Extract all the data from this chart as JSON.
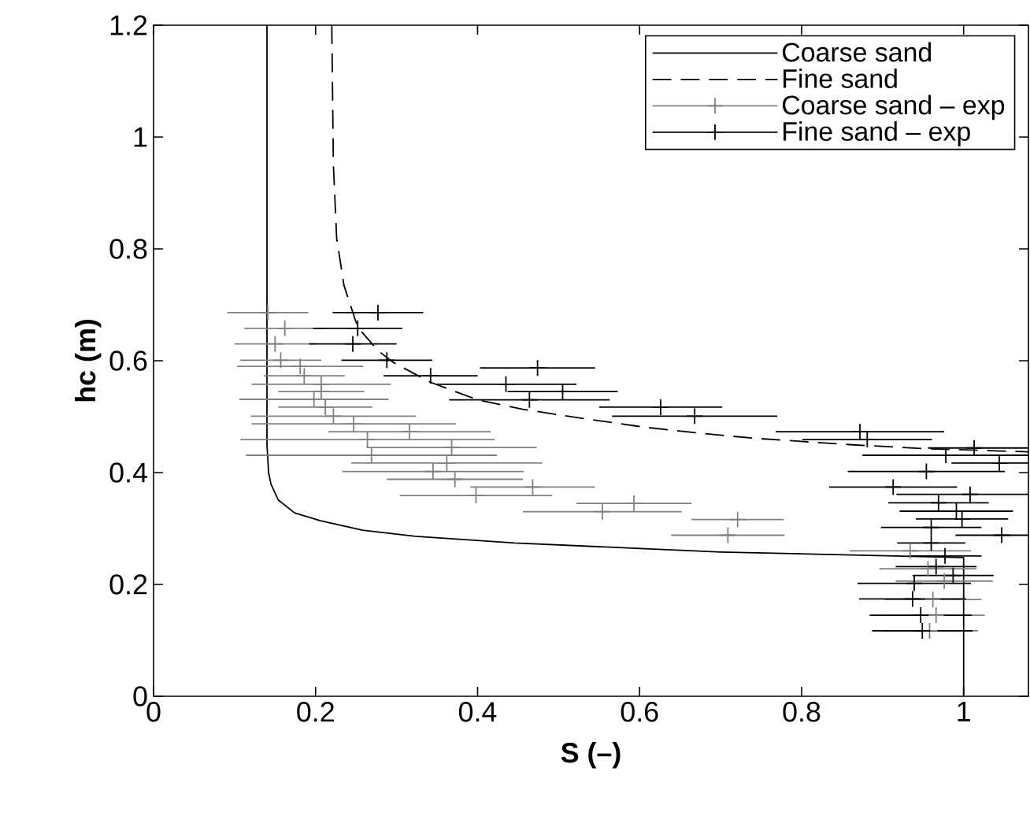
{
  "chart_data": {
    "type": "line",
    "xlabel": "S (–)",
    "ylabel": "hc (m)",
    "xlim": [
      0,
      1.08
    ],
    "ylim": [
      0,
      1.2
    ],
    "xticks": [
      0,
      0.2,
      0.4,
      0.6,
      0.8,
      1
    ],
    "yticks": [
      0,
      0.2,
      0.4,
      0.6,
      0.8,
      1,
      1.2
    ],
    "grid": false,
    "legend": "top right",
    "series": [
      {
        "name": "Coarse sand",
        "line_style": "solid",
        "color": "#000000",
        "x": [
          0.14,
          0.14,
          0.142,
          0.145,
          0.154,
          0.174,
          0.206,
          0.258,
          0.323,
          0.446,
          0.7,
          1.0,
          1.0
        ],
        "values": [
          1.2,
          0.45,
          0.4,
          0.379,
          0.351,
          0.328,
          0.314,
          0.297,
          0.286,
          0.274,
          0.258,
          0.248,
          0
        ]
      },
      {
        "name": "Fine sand",
        "line_style": "dashed",
        "color": "#000000",
        "x": [
          0.22,
          0.222,
          0.226,
          0.235,
          0.252,
          0.277,
          0.296,
          0.341,
          0.4,
          0.457,
          0.529,
          0.607,
          0.671,
          0.736,
          0.859,
          0.95,
          1.08
        ],
        "values": [
          1.2,
          0.95,
          0.82,
          0.735,
          0.66,
          0.618,
          0.597,
          0.562,
          0.53,
          0.513,
          0.497,
          0.481,
          0.471,
          0.462,
          0.45,
          0.443,
          0.437
        ]
      },
      {
        "name": "Coarse sand – exp",
        "type": "scatter",
        "marker": "cross",
        "color": "#808080",
        "x": [
          0.141,
          0.162,
          0.15,
          0.157,
          0.181,
          0.186,
          0.207,
          0.207,
          0.198,
          0.212,
          0.222,
          0.247,
          0.316,
          0.264,
          0.368,
          0.269,
          0.362,
          0.345,
          0.372,
          0.468,
          0.398,
          0.593,
          0.554,
          0.721,
          0.709,
          0.934,
          0.956,
          0.976,
          0.962,
          0.966,
          0.958
        ],
        "values": [
          0.686,
          0.658,
          0.63,
          0.601,
          0.59,
          0.573,
          0.558,
          0.545,
          0.531,
          0.517,
          0.501,
          0.487,
          0.473,
          0.459,
          0.445,
          0.431,
          0.417,
          0.402,
          0.388,
          0.374,
          0.359,
          0.345,
          0.33,
          0.316,
          0.288,
          0.26,
          0.228,
          0.206,
          0.173,
          0.145,
          0.117
        ],
        "xerrors": [
          0.05,
          0.05,
          0.05,
          0.05,
          0.078,
          0.05,
          0.086,
          0.053,
          0.092,
          0.058,
          0.102,
          0.126,
          0.1,
          0.157,
          0.105,
          0.155,
          0.118,
          0.112,
          0.084,
          0.077,
          0.094,
          0.071,
          0.098,
          0.057,
          0.07,
          0.075,
          0.06,
          0.06,
          0.06,
          0.06,
          0.06
        ]
      },
      {
        "name": "Fine sand – exp",
        "type": "scatter",
        "marker": "cross",
        "color": "#000000",
        "x": [
          0.277,
          0.252,
          0.246,
          0.288,
          0.342,
          0.474,
          0.435,
          0.505,
          0.464,
          0.626,
          0.668,
          0.872,
          0.881,
          1.013,
          0.978,
          1.044,
          0.954,
          0.913,
          1.008,
          0.969,
          0.991,
          0.998,
          0.96,
          1.047,
          0.96,
          0.977,
          0.966,
          0.987,
          0.939,
          0.937,
          0.947,
          0.949
        ],
        "values": [
          0.686,
          0.658,
          0.63,
          0.601,
          0.573,
          0.587,
          0.558,
          0.545,
          0.53,
          0.517,
          0.501,
          0.473,
          0.459,
          0.444,
          0.431,
          0.417,
          0.402,
          0.374,
          0.361,
          0.346,
          0.331,
          0.317,
          0.302,
          0.288,
          0.274,
          0.251,
          0.232,
          0.216,
          0.202,
          0.174,
          0.145,
          0.117
        ],
        "xerrors": [
          0.056,
          0.055,
          0.054,
          0.056,
          0.058,
          0.071,
          0.087,
          0.068,
          0.099,
          0.076,
          0.102,
          0.104,
          0.08,
          [
            0.956,
            1.08
          ],
          [
            0.875,
            1.08
          ],
          [
            0.985,
            1.08
          ],
          0.097,
          0.079,
          [
            0.917,
            1.08
          ],
          0.062,
          0.07,
          0.057,
          0.062,
          [
            0.99,
            1.08
          ],
          0.042,
          0.045,
          0.05,
          0.05,
          0.07,
          0.066,
          0.063,
          0.062
        ]
      }
    ]
  }
}
